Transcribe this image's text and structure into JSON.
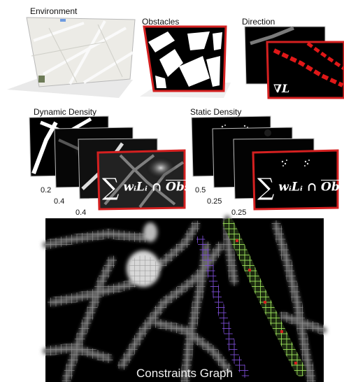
{
  "panels": {
    "environment": {
      "title": "Environment"
    },
    "obstacles": {
      "title": "Obstacles"
    },
    "direction": {
      "title": "Direction",
      "formula": "∇L"
    },
    "dynamic_density": {
      "title": "Dynamic Density",
      "weights": [
        "0.2",
        "0.4",
        "0.4"
      ],
      "formula_sum": "∑",
      "formula_terms": "wᵢLᵢ ∩ ",
      "formula_obs": "Obs"
    },
    "static_density": {
      "title": "Static Density",
      "weights": [
        "0.5",
        "0.25",
        "0.25"
      ],
      "formula_sum": "∑",
      "formula_terms": "wᵢLᵢ ∩ ",
      "formula_obs": "Obs"
    },
    "constraints_graph": {
      "title": "Constraints Graph"
    }
  },
  "colors": {
    "frame_red": "#d42020",
    "direction_arrow": "#e01818",
    "grid_purple": "#7a4bd0",
    "grid_green": "#9be05a",
    "grid_gray": "#8c8c8c"
  }
}
